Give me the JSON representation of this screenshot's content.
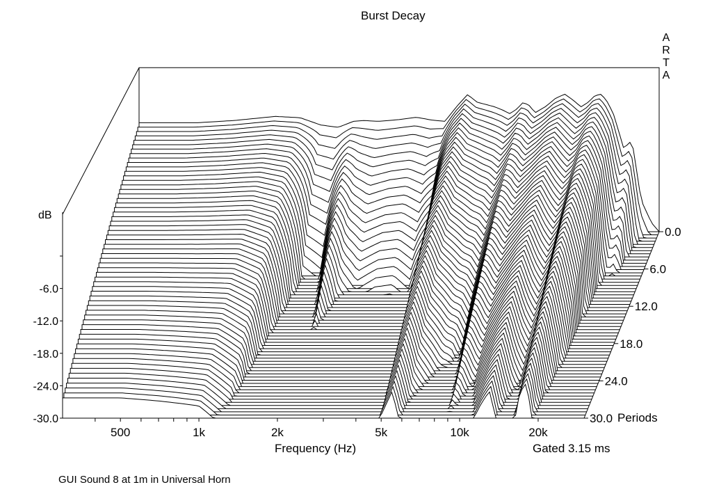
{
  "chart_data": {
    "type": "waterfall",
    "title": "Burst Decay",
    "brand_text": [
      "A",
      "R",
      "T",
      "A"
    ],
    "xlabel": "Frequency (Hz)",
    "x_scale": "log",
    "x_ticks": [
      {
        "value": 500,
        "label": "500"
      },
      {
        "value": 1000,
        "label": "1k"
      },
      {
        "value": 2000,
        "label": "2k"
      },
      {
        "value": 5000,
        "label": "5k"
      },
      {
        "value": 10000,
        "label": "10k"
      },
      {
        "value": 20000,
        "label": "20k"
      }
    ],
    "xlim": [
      300,
      30000
    ],
    "ylabel": "dB",
    "y_ticks": [
      {
        "value": 0,
        "label": ""
      },
      {
        "value": -6,
        "label": "-6.0"
      },
      {
        "value": -12,
        "label": "-12.0"
      },
      {
        "value": -18,
        "label": "-18.0"
      },
      {
        "value": -24,
        "label": "-24.0"
      },
      {
        "value": -30,
        "label": "-30.0"
      }
    ],
    "ylim": [
      -30,
      0
    ],
    "z_label": "Periods",
    "z_ticks": [
      {
        "value": 0,
        "label": "0.0"
      },
      {
        "value": 6,
        "label": "6.0"
      },
      {
        "value": 12,
        "label": "12.0"
      },
      {
        "value": 18,
        "label": "18.0"
      },
      {
        "value": 24,
        "label": "24.0"
      },
      {
        "value": 30,
        "label": "30.0"
      }
    ],
    "zlim": [
      0,
      30
    ],
    "slice_count": 60,
    "initial_response": {
      "frequency_hz": [
        300,
        500,
        700,
        1000,
        1250,
        1500,
        1750,
        2000,
        2200,
        2500,
        3000,
        3500,
        4000,
        4500,
        5000,
        5500,
        6000,
        6500,
        7000,
        7500,
        8000,
        8500,
        9000,
        9500,
        10000,
        11000,
        12000,
        13000,
        14000,
        15000,
        16000,
        17000,
        18000,
        19000,
        20000,
        21000,
        22000,
        23000,
        24000,
        25000,
        26000,
        27000,
        28000,
        30000
      ],
      "level_db": [
        -6,
        -6,
        -5.5,
        -4.6,
        -4.9,
        -6.5,
        -7,
        -5.7,
        -5.5,
        -5.7,
        -5.3,
        -4.8,
        -5.4,
        -5.7,
        -2.4,
        0.2,
        -1.5,
        -2,
        -2.5,
        -3.2,
        -4,
        -3,
        -1.5,
        -2.2,
        -3.8,
        -2.4,
        -0.6,
        0.3,
        -1,
        -2.5,
        -1.5,
        0,
        0.3,
        -1.5,
        -4,
        -8,
        -12,
        -10,
        -12,
        -20,
        -24,
        -26,
        -28,
        -30
      ],
      "decay_periods": [
        40,
        40,
        38,
        35,
        30,
        9,
        8,
        18,
        12,
        10,
        11,
        11,
        10,
        14,
        30,
        32,
        26,
        24,
        22,
        22,
        20,
        24,
        28,
        26,
        25,
        28,
        30,
        32,
        26,
        24,
        26,
        32,
        34,
        28,
        24,
        12,
        10,
        10,
        10,
        8,
        7,
        6,
        6,
        5
      ]
    },
    "caption_gate": "Gated 3.15 ms",
    "caption_bottom": "GUI Sound 8 at 1m in Universal Horn"
  }
}
